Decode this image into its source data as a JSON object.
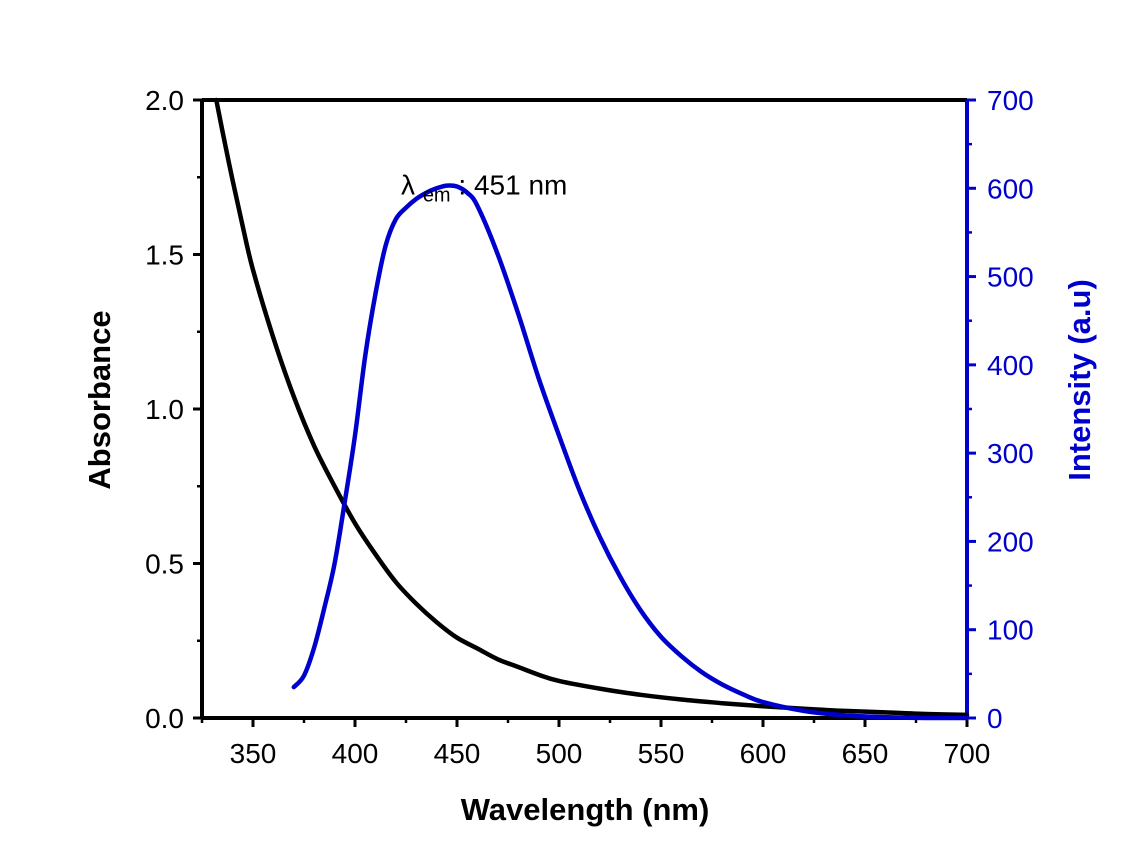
{
  "chart_data": {
    "type": "line",
    "xlabel": "Wavelength (nm)",
    "ylabel": "Absorbance",
    "y2label": "Intensity (a.u)",
    "xlim": [
      325,
      700
    ],
    "ylim": [
      0,
      2.0
    ],
    "y2lim": [
      0,
      700
    ],
    "x_ticks": [
      "350",
      "400",
      "450",
      "500",
      "550",
      "600",
      "650",
      "700"
    ],
    "y_ticks": [
      "0.0",
      "0.5",
      "1.0",
      "1.5",
      "2.0"
    ],
    "y2_ticks": [
      "0",
      "100",
      "200",
      "300",
      "400",
      "500",
      "600",
      "700"
    ],
    "grid": false,
    "annotation": {
      "symbol": "λ",
      "subscript": "em",
      "text": ": 451 nm",
      "x": 451,
      "y2": 618
    },
    "colors": {
      "absorbance": "#000000",
      "emission": "#0000cc",
      "right_axis": "#0000cc"
    },
    "series": [
      {
        "axis": "left",
        "x": [
          332,
          335,
          340,
          345,
          350,
          360,
          370,
          380,
          390,
          400,
          410,
          420,
          430,
          440,
          450,
          460,
          470,
          480,
          490,
          500,
          520,
          540,
          560,
          580,
          600,
          620,
          640,
          660,
          680,
          700
        ],
        "y": [
          2.0,
          1.9,
          1.74,
          1.59,
          1.45,
          1.23,
          1.04,
          0.88,
          0.75,
          0.63,
          0.53,
          0.44,
          0.37,
          0.31,
          0.26,
          0.225,
          0.19,
          0.165,
          0.14,
          0.12,
          0.095,
          0.075,
          0.06,
          0.048,
          0.038,
          0.03,
          0.023,
          0.018,
          0.013,
          0.01
        ]
      },
      {
        "axis": "right",
        "x": [
          370,
          375,
          380,
          385,
          390,
          395,
          400,
          405,
          410,
          415,
          420,
          425,
          430,
          435,
          440,
          445,
          450,
          455,
          460,
          470,
          480,
          490,
          500,
          510,
          520,
          530,
          540,
          550,
          560,
          570,
          580,
          590,
          600,
          620,
          640,
          660,
          680,
          700
        ],
        "y": [
          35,
          48,
          80,
          125,
          175,
          245,
          320,
          410,
          480,
          535,
          565,
          578,
          588,
          595,
          600,
          603,
          602,
          595,
          580,
          525,
          458,
          385,
          320,
          258,
          205,
          160,
          122,
          92,
          70,
          52,
          38,
          27,
          18,
          8,
          3,
          1,
          0,
          0
        ]
      }
    ]
  }
}
